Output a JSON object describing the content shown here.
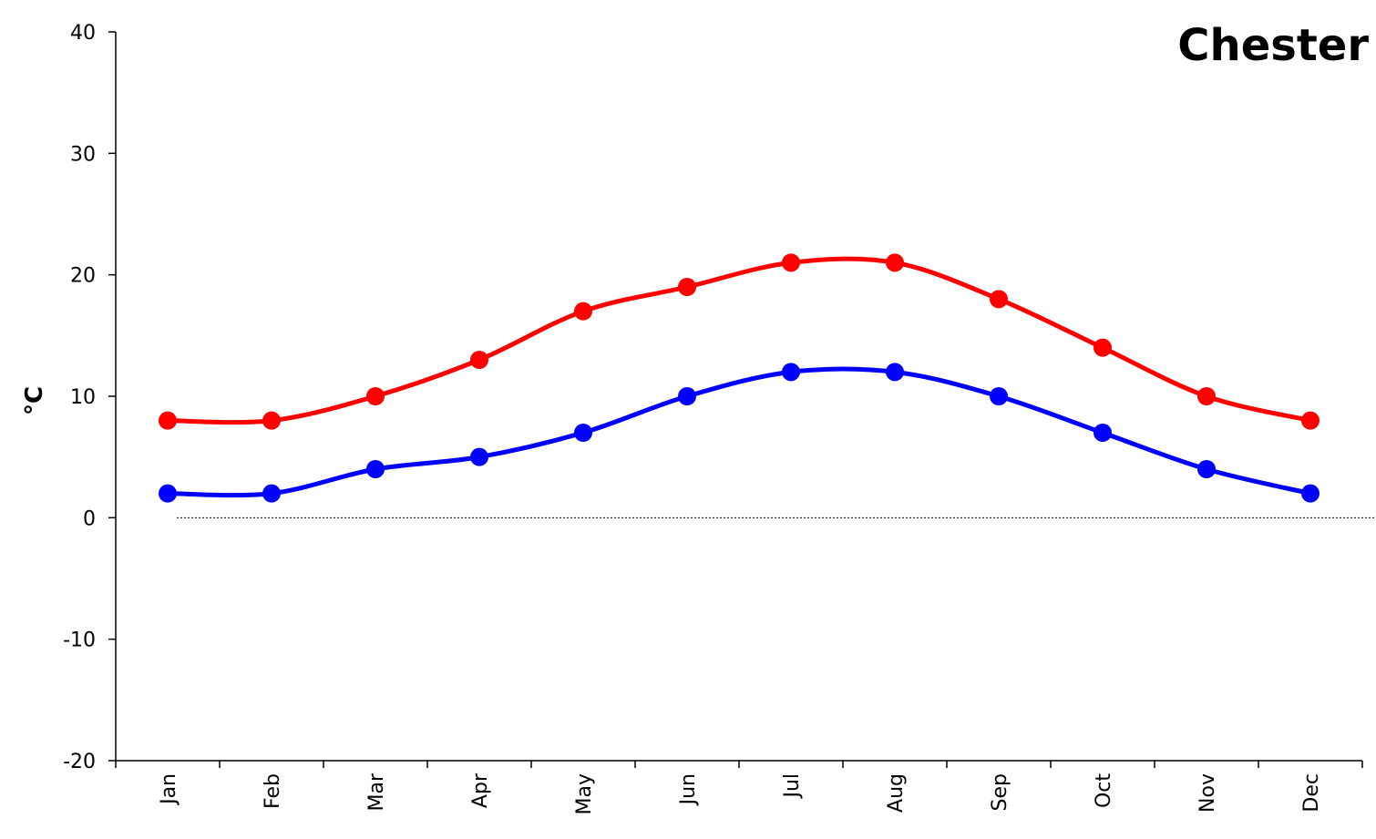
{
  "chart_data": {
    "type": "line",
    "title": "Chester",
    "xlabel": "",
    "ylabel": "°C",
    "categories": [
      "Jan",
      "Feb",
      "Mar",
      "Apr",
      "May",
      "Jun",
      "Jul",
      "Aug",
      "Sep",
      "Oct",
      "Nov",
      "Dec"
    ],
    "ylim": [
      -20,
      40
    ],
    "yticks": [
      -20,
      -10,
      0,
      10,
      20,
      30,
      40
    ],
    "ytick_labels": [
      "-20",
      "-10",
      "0",
      "10",
      "20",
      "30",
      "40"
    ],
    "grid": false,
    "zero_line": true,
    "legend": "none",
    "series": [
      {
        "values": [
          8,
          8,
          10,
          13,
          17,
          19,
          21,
          21,
          18,
          14,
          10,
          8
        ],
        "color": "#ff0000"
      },
      {
        "values": [
          2,
          2,
          4,
          5,
          7,
          10,
          12,
          12,
          10,
          7,
          4,
          2
        ],
        "color": "#0000ff"
      }
    ]
  }
}
